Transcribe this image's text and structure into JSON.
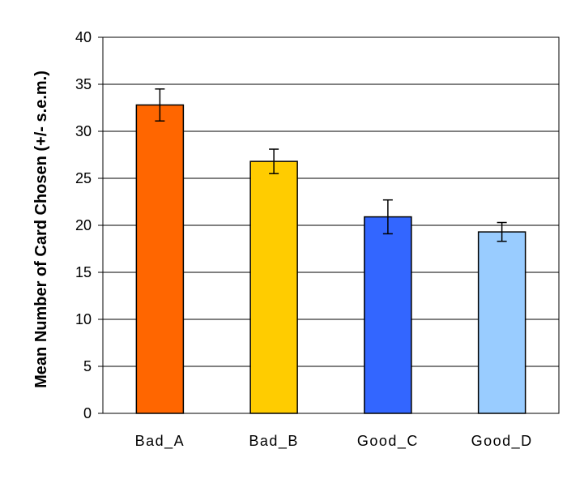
{
  "chart_data": {
    "type": "bar",
    "title": "",
    "xlabel": "",
    "ylabel": "Mean Number of Card Chosen (+/- s.e.m.)",
    "ylim": [
      0,
      40
    ],
    "yticks": [
      0,
      5,
      10,
      15,
      20,
      25,
      30,
      35,
      40
    ],
    "categories": [
      "Bad_A",
      "Bad_B",
      "Good_C",
      "Good_D"
    ],
    "values": [
      32.8,
      26.8,
      20.9,
      19.3
    ],
    "errors": [
      1.7,
      1.3,
      1.8,
      1.0
    ],
    "colors": [
      "#FF6600",
      "#FFCC00",
      "#3366FF",
      "#99CCFF"
    ],
    "grid": true,
    "legend": "none"
  }
}
